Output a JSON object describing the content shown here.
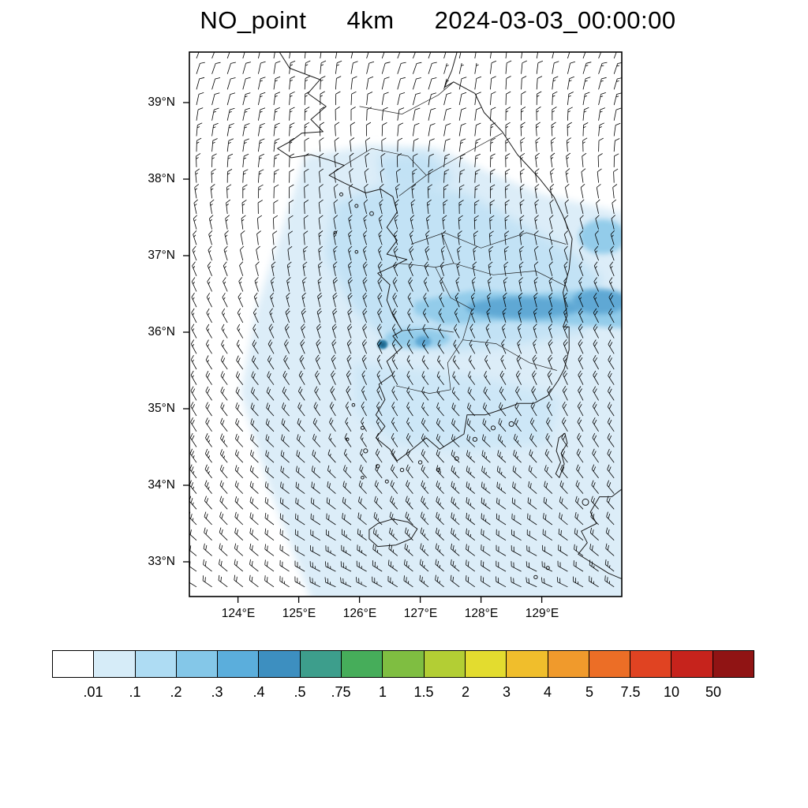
{
  "title": {
    "variable": "NO_point",
    "resolution": "4km",
    "timestamp": "2024-03-03_00:00:00"
  },
  "map": {
    "y_axis_ticks": [
      "39°N",
      "38°N",
      "37°N",
      "36°N",
      "35°N",
      "34°N",
      "33°N"
    ],
    "x_axis_ticks": [
      "124°E",
      "125°E",
      "126°E",
      "127°E",
      "128°E",
      "129°E"
    ]
  },
  "colorbar": {
    "tick_labels": [
      ".01",
      ".1",
      ".2",
      ".3",
      ".4",
      ".5",
      ".75",
      "1",
      "1.5",
      "2",
      "3",
      "4",
      "5",
      "7.5",
      "10",
      "50"
    ],
    "colors": [
      "#FFFFFF",
      "#D6ECF8",
      "#AEDCF3",
      "#84C7E8",
      "#5BAEDC",
      "#3D8FC0",
      "#3D9E8C",
      "#46AD5A",
      "#7FBE41",
      "#B3CE34",
      "#E3DC2F",
      "#F0BE2C",
      "#F09A2C",
      "#EC6E26",
      "#E04322",
      "#C6231C",
      "#901414"
    ]
  },
  "chart_data": {
    "type": "heatmap",
    "subtype": "geographic concentration map with wind barbs",
    "title": "NO_point 4km 2024-03-03_00:00:00",
    "variable": "NO_point",
    "grid_resolution": "4km",
    "valid_time": "2024-03-03_00:00:00",
    "region": "Korean Peninsula and surrounding seas, approx 123.2-130.3E, 32.5-39.7N",
    "x_axis": {
      "label": "longitude",
      "ticks": [
        "124°E",
        "125°E",
        "126°E",
        "127°E",
        "128°E",
        "129°E"
      ]
    },
    "y_axis": {
      "label": "latitude",
      "ticks": [
        "39°N",
        "38°N",
        "37°N",
        "36°N",
        "35°N",
        "34°N",
        "33°N"
      ]
    },
    "colorbar_levels": [
      0.01,
      0.1,
      0.2,
      0.3,
      0.4,
      0.5,
      0.75,
      1,
      1.5,
      2,
      3,
      4,
      5,
      7.5,
      10,
      50
    ],
    "colorbar_colors": [
      "#FFFFFF",
      "#D6ECF8",
      "#AEDCF3",
      "#84C7E8",
      "#5BAEDC",
      "#3D8FC0",
      "#3D9E8C",
      "#46AD5A",
      "#7FBE41",
      "#B3CE34",
      "#E3DC2F",
      "#F0BE2C",
      "#F09A2C",
      "#EC6E26",
      "#E04322",
      "#C6231C",
      "#901414"
    ],
    "legend_position": "bottom",
    "grid": false,
    "overlays": [
      "wind barbs",
      "coastlines",
      "administrative boundaries"
    ],
    "shaded_features": [
      {
        "level_range": "0.01-0.1",
        "description": "broad light-blue shading over most of the domain south and east of a diagonal running from ~125E 38.3N down to ~125E 32.5N; far northwest corner unshaded"
      },
      {
        "level_range": "0.1-0.2",
        "description": "enhanced shading over central Korea between ~36N and ~37.7N and over the southern provinces ~34.5-35.5N"
      },
      {
        "level_range": "0.2-0.4",
        "description": "plume band along ~36.1-36.5N stretching from ~127E to the eastern edge of the domain; patch near 130E 37.3N"
      },
      {
        "level_range": "0.4-0.75",
        "description": "compact dark maxima near 126.4E 35.85N and near 127.0E 35.9N"
      }
    ],
    "wind": {
      "depiction": "barbs",
      "pattern": "north-northeasterly ~10-15 kt over the north veering to northwesterly ~20-25 kt over the south"
    }
  }
}
